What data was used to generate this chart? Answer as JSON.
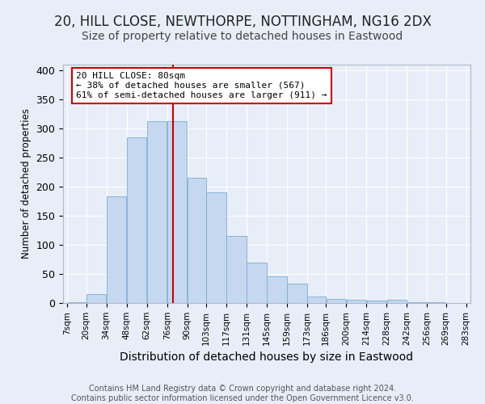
{
  "title": "20, HILL CLOSE, NEWTHORPE, NOTTINGHAM, NG16 2DX",
  "subtitle": "Size of property relative to detached houses in Eastwood",
  "xlabel": "Distribution of detached houses by size in Eastwood",
  "ylabel": "Number of detached properties",
  "bar_color": "#c5d8ef",
  "bar_edge_color": "#7aadd4",
  "background_color": "#e8eef8",
  "grid_color": "#ffffff",
  "vline_x": 80,
  "vline_color": "#cc0000",
  "annotation_text": "20 HILL CLOSE: 80sqm\n← 38% of detached houses are smaller (567)\n61% of semi-detached houses are larger (911) →",
  "annotation_box_color": "#ffffff",
  "annotation_box_edge": "#cc0000",
  "bin_edges": [
    7,
    20,
    34,
    48,
    62,
    76,
    90,
    103,
    117,
    131,
    145,
    159,
    173,
    186,
    200,
    214,
    228,
    242,
    256,
    269,
    283
  ],
  "bin_heights": [
    2,
    15,
    183,
    285,
    313,
    313,
    216,
    190,
    115,
    70,
    46,
    33,
    11,
    7,
    6,
    4,
    6,
    1,
    1,
    0
  ],
  "tick_labels": [
    "7sqm",
    "20sqm",
    "34sqm",
    "48sqm",
    "62sqm",
    "76sqm",
    "90sqm",
    "103sqm",
    "117sqm",
    "131sqm",
    "145sqm",
    "159sqm",
    "173sqm",
    "186sqm",
    "200sqm",
    "214sqm",
    "228sqm",
    "242sqm",
    "256sqm",
    "269sqm",
    "283sqm"
  ],
  "ylim": [
    0,
    410
  ],
  "yticks": [
    0,
    50,
    100,
    150,
    200,
    250,
    300,
    350,
    400
  ],
  "footer_text": "Contains HM Land Registry data © Crown copyright and database right 2024.\nContains public sector information licensed under the Open Government Licence v3.0.",
  "title_fontsize": 12,
  "subtitle_fontsize": 10,
  "footer_fontsize": 7
}
